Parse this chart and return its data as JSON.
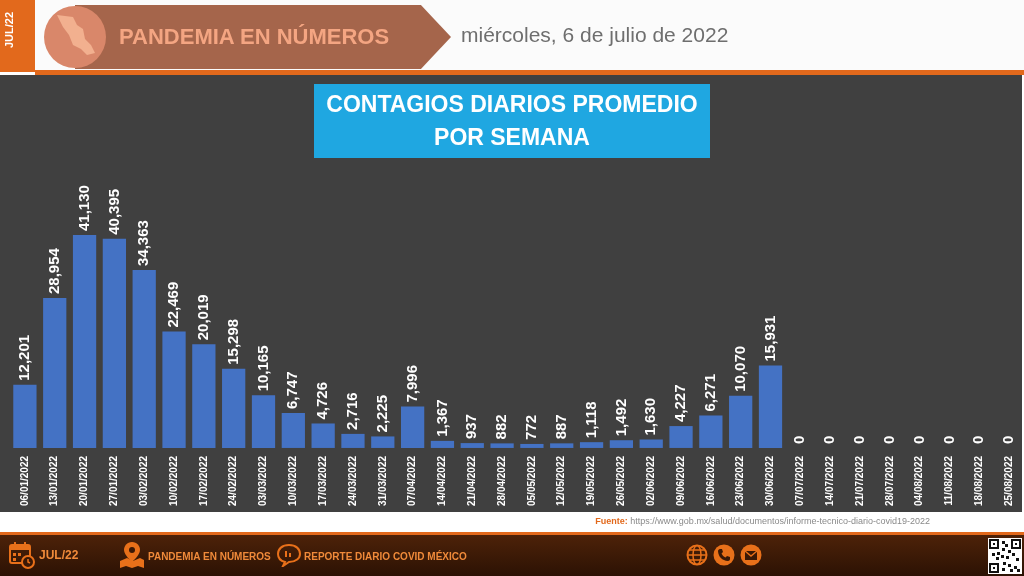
{
  "chart_data": {
    "type": "bar",
    "title": "CONTAGIOS DIARIOS PROMEDIO POR SEMANA",
    "categories": [
      "06/01/2022",
      "13/01/2022",
      "20/01/2022",
      "27/01/2022",
      "03/02/2022",
      "10/02/2022",
      "17/02/2022",
      "24/02/2022",
      "03/03/2022",
      "10/03/2022",
      "17/03/2022",
      "24/03/2022",
      "31/03/2022",
      "07/04/2022",
      "14/04/2022",
      "21/04/2022",
      "28/04/2022",
      "05/05/2022",
      "12/05/2022",
      "19/05/2022",
      "26/05/2022",
      "02/06/2022",
      "09/06/2022",
      "16/06/2022",
      "23/06/2022",
      "30/06/2022",
      "07/07/2022",
      "14/07/2022",
      "21/07/2022",
      "28/07/2022",
      "04/08/2022",
      "11/08/2022",
      "18/08/2022",
      "25/08/2022"
    ],
    "values": [
      12201,
      28954,
      41130,
      40395,
      34363,
      22469,
      20019,
      15298,
      10165,
      6747,
      4726,
      2716,
      2225,
      7996,
      1367,
      937,
      882,
      772,
      887,
      1118,
      1492,
      1630,
      4227,
      6271,
      10070,
      15931,
      0,
      0,
      0,
      0,
      0,
      0,
      0,
      0
    ],
    "value_labels": [
      "12,201",
      "28,954",
      "41,130",
      "40,395",
      "34,363",
      "22,469",
      "20,019",
      "15,298",
      "10,165",
      "6,747",
      "4,726",
      "2,716",
      "2,225",
      "7,996",
      "1,367",
      "937",
      "882",
      "772",
      "887",
      "1,118",
      "1,492",
      "1,630",
      "4,227",
      "6,271",
      "10,070",
      "15,931",
      "0",
      "0",
      "0",
      "0",
      "0",
      "0",
      "0",
      "0"
    ],
    "color": "#4472c4",
    "tick_labels": "x",
    "annotations": [
      "JUL/22",
      "PANDEMIA EN NÚMEROS",
      "miércoles, 6 de julio de 2022",
      "Fuente: https://www.gob.mx/salud/documentos/informe-tecnico-diario-covid19-2022",
      "JUL/22",
      "PANDEMIA EN NÚMEROS",
      "REPORTE DIARIO COVID MÉXICO"
    ]
  }
}
